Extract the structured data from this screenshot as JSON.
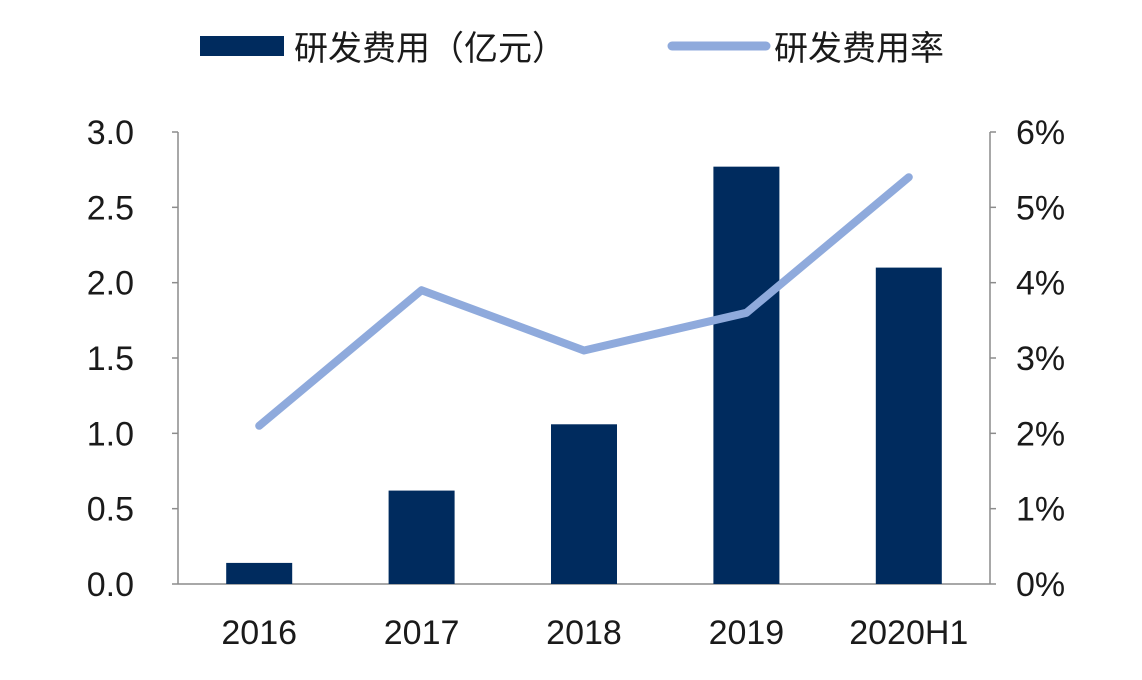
{
  "chart_data": {
    "type": "bar",
    "categories": [
      "2016",
      "2017",
      "2018",
      "2019",
      "2020H1"
    ],
    "series": [
      {
        "name": "研发费用（亿元）",
        "type": "bar",
        "axis": "left",
        "color": "#002b5e",
        "values": [
          0.14,
          0.62,
          1.06,
          2.77,
          2.1
        ]
      },
      {
        "name": "研发费用率",
        "type": "line",
        "axis": "right",
        "color": "#8faadc",
        "values": [
          2.1,
          3.9,
          3.1,
          3.6,
          5.4
        ]
      }
    ],
    "ylim_left": [
      0,
      3.0
    ],
    "ylim_right": [
      0,
      6
    ],
    "yticks_left": [
      "0.0",
      "0.5",
      "1.0",
      "1.5",
      "2.0",
      "2.5",
      "3.0"
    ],
    "yticks_right": [
      "0%",
      "1%",
      "2%",
      "3%",
      "4%",
      "5%",
      "6%"
    ],
    "legend_position": "top",
    "grid": false
  }
}
